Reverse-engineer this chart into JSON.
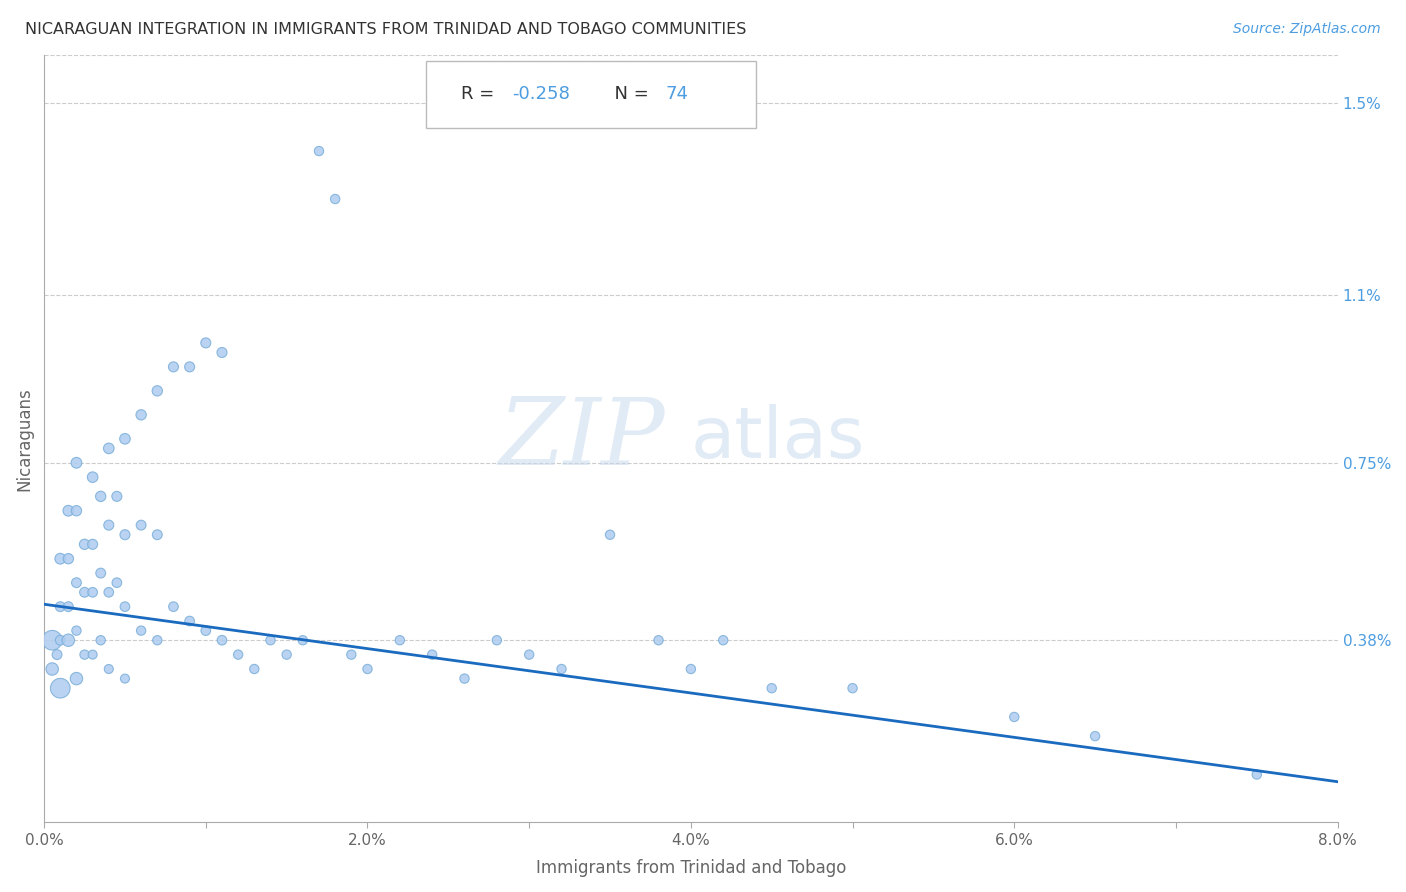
{
  "title": "NICARAGUAN INTEGRATION IN IMMIGRANTS FROM TRINIDAD AND TOBAGO COMMUNITIES",
  "source": "Source: ZipAtlas.com",
  "xlabel": "Immigrants from Trinidad and Tobago",
  "ylabel": "Nicaraguans",
  "R": -0.258,
  "N": 74,
  "xlim": [
    0.0,
    0.08
  ],
  "ylim": [
    0.0,
    0.016
  ],
  "xticks": [
    0.0,
    0.01,
    0.02,
    0.03,
    0.04,
    0.05,
    0.06,
    0.07,
    0.08
  ],
  "xticklabels": [
    "0.0%",
    "",
    "2.0%",
    "",
    "4.0%",
    "",
    "6.0%",
    "",
    "8.0%"
  ],
  "ytick_positions": [
    0.0038,
    0.0075,
    0.011,
    0.015
  ],
  "ytick_labels": [
    "0.38%",
    "0.75%",
    "1.1%",
    "1.5%"
  ],
  "scatter_color": "#aeccf0",
  "scatter_edge_color": "#7aaed8",
  "line_color": "#1a6bbf",
  "background_color": "#ffffff",
  "scatter_x": [
    0.0005,
    0.0005,
    0.0008,
    0.001,
    0.001,
    0.001,
    0.001,
    0.0015,
    0.0015,
    0.0015,
    0.0015,
    0.002,
    0.002,
    0.002,
    0.002,
    0.002,
    0.0025,
    0.0025,
    0.0025,
    0.003,
    0.003,
    0.003,
    0.003,
    0.0035,
    0.0035,
    0.0035,
    0.004,
    0.004,
    0.004,
    0.004,
    0.0045,
    0.0045,
    0.005,
    0.005,
    0.005,
    0.005,
    0.006,
    0.006,
    0.006,
    0.007,
    0.007,
    0.007,
    0.008,
    0.008,
    0.009,
    0.009,
    0.01,
    0.01,
    0.011,
    0.011,
    0.012,
    0.013,
    0.014,
    0.015,
    0.016,
    0.017,
    0.018,
    0.019,
    0.02,
    0.022,
    0.024,
    0.026,
    0.028,
    0.03,
    0.032,
    0.035,
    0.038,
    0.04,
    0.042,
    0.045,
    0.05,
    0.06,
    0.065,
    0.075
  ],
  "scatter_y": [
    0.0038,
    0.0032,
    0.0035,
    0.0055,
    0.0045,
    0.0038,
    0.0028,
    0.0065,
    0.0055,
    0.0045,
    0.0038,
    0.0075,
    0.0065,
    0.005,
    0.004,
    0.003,
    0.0058,
    0.0048,
    0.0035,
    0.0072,
    0.0058,
    0.0048,
    0.0035,
    0.0068,
    0.0052,
    0.0038,
    0.0078,
    0.0062,
    0.0048,
    0.0032,
    0.0068,
    0.005,
    0.008,
    0.006,
    0.0045,
    0.003,
    0.0085,
    0.0062,
    0.004,
    0.009,
    0.006,
    0.0038,
    0.0095,
    0.0045,
    0.0095,
    0.0042,
    0.01,
    0.004,
    0.0098,
    0.0038,
    0.0035,
    0.0032,
    0.0038,
    0.0035,
    0.0038,
    0.014,
    0.013,
    0.0035,
    0.0032,
    0.0038,
    0.0035,
    0.003,
    0.0038,
    0.0035,
    0.0032,
    0.006,
    0.0038,
    0.0032,
    0.0038,
    0.0028,
    0.0028,
    0.0022,
    0.0018,
    0.001
  ],
  "scatter_sizes": [
    200,
    80,
    50,
    60,
    50,
    50,
    200,
    60,
    55,
    50,
    80,
    60,
    55,
    50,
    45,
    80,
    55,
    50,
    45,
    58,
    52,
    48,
    42,
    55,
    50,
    45,
    58,
    52,
    48,
    42,
    52,
    48,
    58,
    52,
    48,
    42,
    55,
    50,
    45,
    55,
    50,
    45,
    52,
    48,
    52,
    48,
    52,
    48,
    52,
    48,
    45,
    45,
    45,
    45,
    45,
    45,
    45,
    45,
    45,
    45,
    45,
    45,
    45,
    45,
    45,
    45,
    45,
    45,
    45,
    45,
    45,
    45,
    45,
    45
  ],
  "line_x": [
    0.0,
    0.08
  ],
  "line_y": [
    0.00455,
    0.00085
  ],
  "watermark_zip": "ZIP",
  "watermark_atlas": "atlas",
  "watermark_color": "#c5d8ee",
  "watermark_alpha": 0.5
}
